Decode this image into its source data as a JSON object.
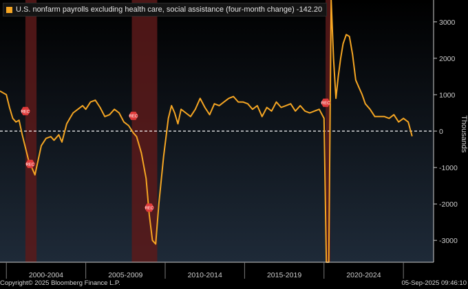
{
  "chart_data": {
    "type": "line",
    "title": "U.S. nonfarm payrolls excluding health care, social assistance (four-month change) -142.20",
    "ylabel": "Thousands",
    "xlabel": "",
    "ylim": [
      -3600,
      3600
    ],
    "xlim": [
      1999.6,
      2026.9
    ],
    "x_tick_labels": [
      "2000-2004",
      "2005-2009",
      "2010-2014",
      "2015-2019",
      "2020-2024"
    ],
    "y_ticks": [
      3000,
      2000,
      1000,
      0,
      -1000,
      -2000,
      -3000
    ],
    "y_tick_labels": [
      "3000",
      "2000",
      "1000",
      "0",
      "-1000",
      "-2000",
      "-3000"
    ],
    "zero_line": "dashed white",
    "recession_bands": [
      {
        "start": 2001.2,
        "end": 2001.9
      },
      {
        "start": 2007.9,
        "end": 2009.5
      },
      {
        "start": 2020.1,
        "end": 2020.4
      }
    ],
    "rec_labels": [
      "REC",
      "REC",
      "REC",
      "REC",
      "REC"
    ],
    "series": [
      {
        "name": "U.S. nonfarm payrolls excluding health care, social assistance (four-month change)",
        "color": "#f6a623",
        "last_value": -142.2,
        "x": [
          1999.6,
          1999.8,
          2000.0,
          2000.2,
          2000.4,
          2000.6,
          2000.8,
          2001.0,
          2001.2,
          2001.4,
          2001.6,
          2001.8,
          2002.0,
          2002.2,
          2002.5,
          2002.8,
          2003.0,
          2003.3,
          2003.5,
          2003.8,
          2004.0,
          2004.2,
          2004.5,
          2004.8,
          2005.0,
          2005.3,
          2005.6,
          2005.9,
          2006.2,
          2006.5,
          2006.8,
          2007.1,
          2007.4,
          2007.7,
          2008.0,
          2008.2,
          2008.5,
          2008.8,
          2009.0,
          2009.2,
          2009.4,
          2009.6,
          2009.9,
          2010.2,
          2010.4,
          2010.6,
          2010.8,
          2011.0,
          2011.3,
          2011.6,
          2011.9,
          2012.2,
          2012.5,
          2012.8,
          2013.1,
          2013.4,
          2013.7,
          2014.0,
          2014.3,
          2014.6,
          2014.9,
          2015.2,
          2015.5,
          2015.8,
          2016.1,
          2016.4,
          2016.7,
          2017.0,
          2017.3,
          2017.6,
          2017.9,
          2018.2,
          2018.5,
          2018.8,
          2019.1,
          2019.4,
          2019.7,
          2020.0,
          2020.15,
          2020.3,
          2020.45,
          2020.6,
          2020.75,
          2020.9,
          2021.05,
          2021.2,
          2021.4,
          2021.6,
          2021.8,
          2022.0,
          2022.2,
          2022.4,
          2022.6,
          2022.9,
          2023.2,
          2023.5,
          2023.8,
          2024.1,
          2024.4,
          2024.7,
          2025.0,
          2025.3,
          2025.55
        ],
        "values": [
          1100,
          1050,
          1000,
          650,
          350,
          250,
          300,
          -100,
          -450,
          -800,
          -1000,
          -1200,
          -800,
          -400,
          -200,
          -150,
          -250,
          -100,
          -300,
          200,
          350,
          500,
          600,
          700,
          600,
          800,
          850,
          650,
          400,
          450,
          600,
          500,
          250,
          150,
          -50,
          -150,
          -600,
          -1300,
          -2300,
          -3000,
          -3100,
          -2000,
          -700,
          350,
          700,
          500,
          200,
          600,
          500,
          400,
          600,
          900,
          650,
          450,
          750,
          700,
          800,
          900,
          950,
          800,
          800,
          750,
          600,
          700,
          400,
          650,
          550,
          800,
          650,
          700,
          750,
          550,
          700,
          550,
          500,
          550,
          600,
          350,
          -3700,
          -3700,
          3700,
          2000,
          900,
          1500,
          2000,
          2400,
          2650,
          2600,
          2100,
          1400,
          1200,
          1000,
          750,
          600,
          400,
          400,
          400,
          350,
          450,
          250,
          350,
          250,
          -142.2
        ]
      }
    ]
  },
  "legend": {
    "text": "U.S. nonfarm payrolls excluding health care, social assistance (four-month change) -142.20"
  },
  "footer": {
    "copyright": "Copyright© 2025 Bloomberg Finance L.P.",
    "timestamp": "05-Sep-2025 09:46:10"
  },
  "colors": {
    "line": "#f6a623",
    "recession": "#5a1a1a",
    "rec_marker": "#e03a3a",
    "axis": "#cfcfcf"
  }
}
